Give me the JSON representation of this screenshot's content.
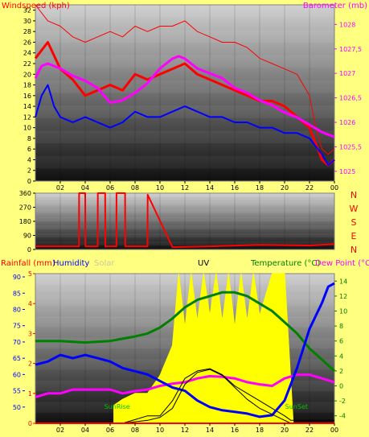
{
  "colors": {
    "background": "#ffff80",
    "wind_speed": "#ff0000",
    "wind_gust": "#ff0000",
    "wind_avg": "#0000ff",
    "barometer": "#ff00ff",
    "direction": "#ff0000",
    "rainfall": "#ff0000",
    "humidity": "#0000ff",
    "solar": "#ffff00",
    "solar_label": "#c8c8a0",
    "uv": "#000000",
    "temperature": "#008000",
    "dew_point": "#ff00ff",
    "indoor_temp": "#000000",
    "sunrise_sunset": "#00c000"
  },
  "chart_data": [
    {
      "type": "line",
      "panel": "wind-barometer",
      "title": "",
      "left_axis": {
        "label": "Windspeed (kph)",
        "range": [
          0,
          33
        ],
        "ticks": [
          0,
          2,
          4,
          6,
          8,
          10,
          12,
          14,
          16,
          18,
          20,
          22,
          24,
          26,
          28,
          30,
          32
        ]
      },
      "right_axis": {
        "label": "Barometer (mb)",
        "range": [
          1024.8,
          1028.4
        ],
        "ticks": [
          "1025",
          "1025,5",
          "1026",
          "1026,5",
          "1027",
          "1027,5",
          "1028"
        ]
      },
      "x_ticks": [
        "02",
        "04",
        "06",
        "08",
        "10",
        "12",
        "14",
        "16",
        "18",
        "20",
        "22",
        "00"
      ],
      "x_range": [
        0,
        24
      ],
      "series": [
        {
          "role": "wind_speed",
          "axis": "left",
          "x": [
            0,
            1,
            2,
            3,
            4,
            5,
            6,
            7,
            8,
            9,
            10,
            11,
            12,
            13,
            14,
            15,
            16,
            17,
            18,
            19,
            20,
            21,
            22,
            22.5,
            23,
            23.5,
            24
          ],
          "y": [
            23,
            26,
            21,
            19,
            16,
            17,
            18,
            17,
            20,
            19,
            20,
            21,
            22,
            20,
            19,
            18,
            17,
            16,
            15,
            15,
            14,
            12,
            10,
            7,
            4,
            3,
            4
          ]
        },
        {
          "role": "wind_gust",
          "axis": "left",
          "x": [
            0,
            1,
            2,
            3,
            4,
            5,
            6,
            7,
            8,
            9,
            10,
            11,
            12,
            13,
            14,
            15,
            16,
            17,
            18,
            19,
            20,
            21,
            22,
            22.5,
            23,
            23.5,
            24
          ],
          "y": [
            33,
            30,
            29,
            27,
            26,
            27,
            28,
            27,
            29,
            28,
            29,
            29,
            30,
            28,
            27,
            26,
            26,
            25,
            23,
            22,
            21,
            20,
            16,
            10,
            6,
            5,
            6
          ]
        },
        {
          "role": "wind_avg",
          "axis": "left",
          "x": [
            0,
            0.5,
            1,
            1.5,
            2,
            3,
            4,
            5,
            6,
            7,
            8,
            9,
            10,
            11,
            12,
            13,
            14,
            15,
            16,
            17,
            18,
            19,
            20,
            21,
            22,
            23,
            23.5,
            24
          ],
          "y": [
            12,
            16,
            18,
            14,
            12,
            11,
            12,
            11,
            10,
            11,
            13,
            12,
            12,
            13,
            14,
            13,
            12,
            12,
            11,
            11,
            10,
            10,
            9,
            9,
            8,
            5,
            3,
            4
          ]
        },
        {
          "role": "barometer",
          "axis": "right",
          "x": [
            0,
            0.5,
            1,
            2,
            3,
            4,
            5,
            6,
            7,
            8,
            9,
            10,
            11,
            11.5,
            12,
            13,
            14,
            15,
            16,
            17,
            18,
            19,
            20,
            21,
            22,
            23,
            24
          ],
          "y": [
            1026.9,
            1027.15,
            1027.2,
            1027.1,
            1026.95,
            1026.85,
            1026.7,
            1026.4,
            1026.45,
            1026.6,
            1026.8,
            1027.1,
            1027.3,
            1027.35,
            1027.3,
            1027.1,
            1027.0,
            1026.9,
            1026.7,
            1026.6,
            1026.45,
            1026.35,
            1026.2,
            1026.1,
            1025.95,
            1025.8,
            1025.7
          ]
        }
      ]
    },
    {
      "type": "line",
      "panel": "wind-direction",
      "title": "",
      "left_axis": {
        "range": [
          0,
          360
        ],
        "ticks": [
          "0",
          "90",
          "180",
          "270",
          "360"
        ]
      },
      "right_labels": [
        "N",
        "W",
        "S",
        "E",
        "N"
      ],
      "x_range": [
        0,
        24
      ],
      "series": [
        {
          "role": "direction",
          "x": [
            0,
            3.5,
            3.51,
            4.0,
            4.01,
            5.0,
            5.01,
            5.6,
            5.61,
            6.5,
            6.51,
            7.2,
            7.21,
            9.0,
            9.01,
            11,
            14,
            18,
            22,
            24
          ],
          "y": [
            20,
            20,
            360,
            360,
            20,
            20,
            360,
            360,
            20,
            20,
            360,
            360,
            20,
            20,
            350,
            15,
            20,
            30,
            25,
            35
          ]
        }
      ]
    },
    {
      "type": "line",
      "panel": "rain-humidity-solar-uv-temperature",
      "title": "",
      "left_axis": {
        "label": "Rainfall (mm) Humidity",
        "range": [
          45,
          91
        ],
        "ticks": [
          50,
          55,
          60,
          65,
          70,
          75,
          80,
          85,
          90
        ]
      },
      "left_axis_2": {
        "range": [
          0,
          5
        ],
        "ticks": [
          0,
          1,
          2,
          3,
          4,
          5
        ]
      },
      "right_axis": {
        "label": "Temperature (°C)Dew Point (°C)",
        "range": [
          -5,
          15
        ],
        "ticks": [
          -4,
          -2,
          0,
          2,
          4,
          6,
          8,
          10,
          12,
          14
        ]
      },
      "x_ticks": [
        "02",
        "04",
        "06",
        "08",
        "10",
        "12",
        "14",
        "16",
        "18",
        "20",
        "22",
        "00"
      ],
      "x_range": [
        0,
        24
      ],
      "legend": [
        "Rainfall (mm)",
        "Humidity",
        "Solar",
        "UV",
        "Temperature (°C)",
        "Dew Point (°C)"
      ],
      "annotations": [
        {
          "text": "SunRise",
          "x": 6.3
        },
        {
          "text": "SunSet",
          "x": 20.7
        }
      ],
      "series": [
        {
          "role": "temperature",
          "axis": "right",
          "x": [
            0,
            2,
            4,
            6,
            7,
            8,
            9,
            10,
            11,
            12,
            13,
            14,
            15,
            16,
            17,
            18,
            19,
            20,
            21,
            22,
            23,
            24
          ],
          "y": [
            6,
            6,
            5.8,
            6,
            6.3,
            6.6,
            7,
            7.8,
            9,
            10.5,
            11.5,
            12,
            12.5,
            12.5,
            12,
            11,
            10,
            8.5,
            7,
            5,
            3.5,
            2
          ]
        },
        {
          "role": "dew_point",
          "axis": "right",
          "x": [
            0,
            1,
            2,
            3,
            4,
            5,
            6,
            7,
            8,
            9,
            10,
            11,
            12,
            13,
            14,
            15,
            16,
            17,
            18,
            19,
            20,
            21,
            22,
            23,
            24
          ],
          "y": [
            -1.5,
            -1,
            -1,
            -0.5,
            -0.5,
            -0.5,
            -0.5,
            -1,
            -0.7,
            -0.5,
            0,
            0.3,
            0.5,
            1,
            1.3,
            1.2,
            1,
            0.5,
            0.2,
            0,
            1,
            1.5,
            1.5,
            1,
            0.5
          ]
        },
        {
          "role": "indoor_temp",
          "axis": "right",
          "x": [
            0,
            6.5,
            7,
            8,
            9,
            10,
            11,
            12,
            13,
            14,
            15,
            16,
            17,
            18,
            19,
            20,
            20.5,
            24
          ],
          "y": [
            -5,
            -5,
            -5,
            -4.5,
            -4,
            -4,
            -2,
            1,
            2,
            2.3,
            1.5,
            0,
            -1,
            -2,
            -3,
            -4,
            -4.6,
            -4.6
          ]
        },
        {
          "role": "humidity",
          "axis": "left",
          "x": [
            0,
            1,
            2,
            3,
            4,
            5,
            6,
            7,
            8,
            9,
            10,
            11,
            12,
            13,
            14,
            15,
            16,
            17,
            18,
            19,
            20,
            21,
            22,
            23,
            23.5,
            24
          ],
          "y": [
            63,
            64,
            66,
            65,
            66,
            65,
            64,
            62,
            61,
            60,
            58,
            56,
            55,
            52,
            50,
            49,
            48.5,
            48,
            47,
            47.5,
            52,
            62,
            74,
            82,
            87,
            88
          ]
        },
        {
          "role": "solar",
          "axis": "left_2",
          "x": [
            6.3,
            7,
            8,
            9,
            10,
            11,
            11.5,
            12,
            12.5,
            13,
            13.5,
            14,
            14.5,
            15,
            15.5,
            16,
            16.5,
            17,
            17.5,
            18,
            19,
            20,
            20.7
          ],
          "y": [
            0.6,
            0.8,
            1.0,
            1.0,
            1.6,
            2.6,
            5,
            3.2,
            5,
            3.4,
            5,
            3.6,
            5,
            3.4,
            5,
            3.2,
            5,
            3.4,
            5,
            3.6,
            5,
            5,
            0
          ]
        },
        {
          "role": "uv",
          "axis": "left_2",
          "x": [
            0,
            6.5,
            7,
            8,
            9,
            10,
            11,
            12,
            13,
            14,
            15,
            16,
            17,
            18,
            19,
            20,
            20.5,
            24
          ],
          "y": [
            0,
            0,
            0,
            0.05,
            0.1,
            0.2,
            0.5,
            1.3,
            1.7,
            1.8,
            1.6,
            1.2,
            0.8,
            0.5,
            0.3,
            0.1,
            0,
            0
          ]
        },
        {
          "role": "rainfall",
          "axis": "left_2",
          "x": [
            0,
            24
          ],
          "y": [
            0,
            0
          ]
        }
      ]
    }
  ]
}
